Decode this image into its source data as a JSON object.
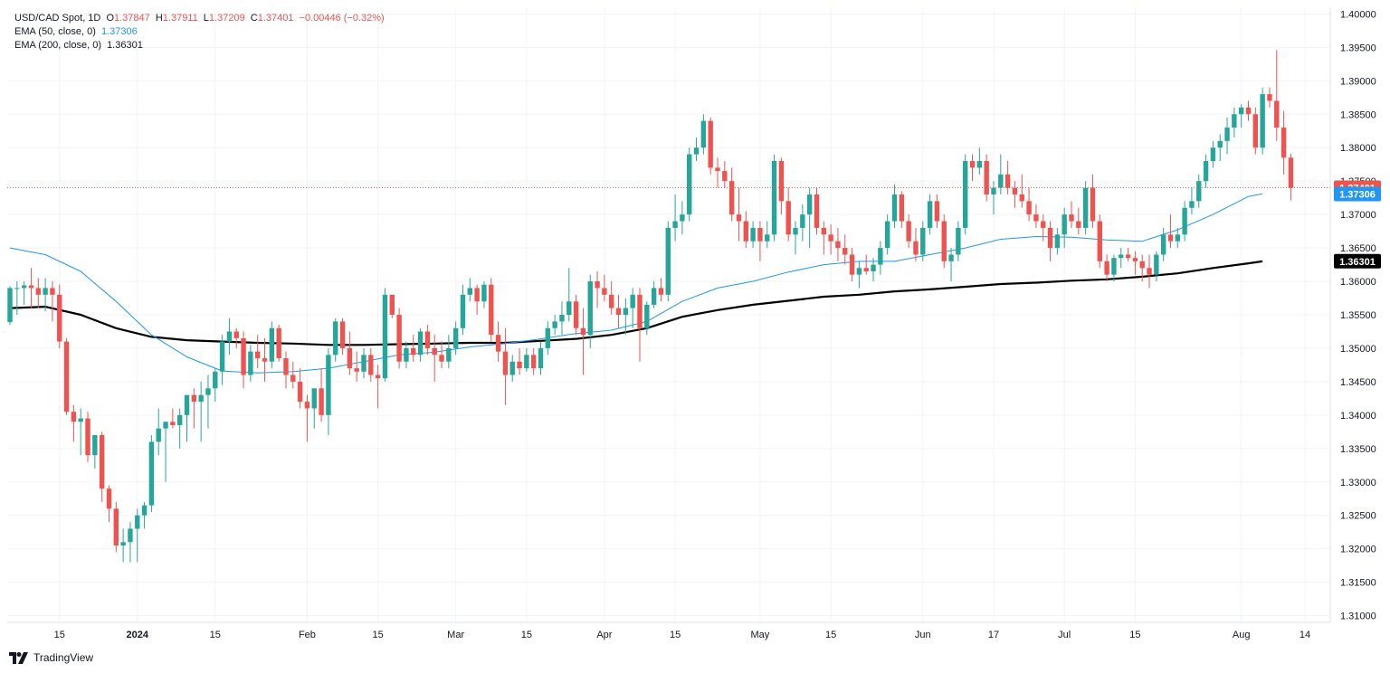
{
  "legend": {
    "symbol": "USD/CAD Spot, 1D",
    "o_label": "O",
    "o_val": "1.37847",
    "h_label": "H",
    "h_val": "1.37911",
    "l_label": "L",
    "l_val": "1.37209",
    "c_label": "C",
    "c_val": "1.37401",
    "change": "−0.00446 (−0.32%)",
    "ema50_label": "EMA (50, close, 0)",
    "ema50_val": "1.37306",
    "ema200_label": "EMA (200, close, 0)",
    "ema200_val": "1.36301"
  },
  "branding": {
    "logo_text": "TradingView"
  },
  "colors": {
    "up": "#26a69a",
    "down": "#ef5350",
    "ema50": "#2196f3",
    "ema200": "#000000",
    "grid": "#f0f3fa",
    "text": "#131722"
  },
  "chart_data": {
    "type": "candlestick",
    "title": "USD/CAD Spot, 1D",
    "ylim": [
      1.309,
      1.401
    ],
    "y_ticks": [
      "1.31000",
      "1.31500",
      "1.32000",
      "1.32500",
      "1.33000",
      "1.33500",
      "1.34000",
      "1.34500",
      "1.35000",
      "1.35500",
      "1.36000",
      "1.36500",
      "1.37000",
      "1.37500",
      "1.38000",
      "1.38500",
      "1.39000",
      "1.39500",
      "1.40000"
    ],
    "x_ticks": [
      {
        "label": "15",
        "index": 7,
        "bold": false
      },
      {
        "label": "2024",
        "index": 18,
        "bold": true
      },
      {
        "label": "15",
        "index": 29,
        "bold": false
      },
      {
        "label": "Feb",
        "index": 42,
        "bold": false
      },
      {
        "label": "15",
        "index": 52,
        "bold": false
      },
      {
        "label": "Mar",
        "index": 63,
        "bold": false
      },
      {
        "label": "15",
        "index": 73,
        "bold": false
      },
      {
        "label": "Apr",
        "index": 84,
        "bold": false
      },
      {
        "label": "15",
        "index": 94,
        "bold": false
      },
      {
        "label": "May",
        "index": 106,
        "bold": false
      },
      {
        "label": "15",
        "index": 116,
        "bold": false
      },
      {
        "label": "Jun",
        "index": 129,
        "bold": false
      },
      {
        "label": "17",
        "index": 139,
        "bold": false
      },
      {
        "label": "Jul",
        "index": 149,
        "bold": false
      },
      {
        "label": "15",
        "index": 159,
        "bold": false
      },
      {
        "label": "Aug",
        "index": 174,
        "bold": false
      },
      {
        "label": "14",
        "index": 183,
        "bold": false
      }
    ],
    "price_labels": {
      "last": "1.37401",
      "ema50": "1.37306",
      "ema200": "1.36301"
    },
    "last_price": 1.37401,
    "candles": [
      [
        1.3539,
        1.3593,
        1.3535,
        1.359
      ],
      [
        1.359,
        1.36,
        1.355,
        1.359
      ],
      [
        1.359,
        1.36,
        1.3565,
        1.3594
      ],
      [
        1.3594,
        1.362,
        1.356,
        1.359
      ],
      [
        1.359,
        1.3605,
        1.356,
        1.358
      ],
      [
        1.358,
        1.3605,
        1.3555,
        1.359
      ],
      [
        1.359,
        1.36,
        1.354,
        1.358
      ],
      [
        1.358,
        1.3595,
        1.35,
        1.351
      ],
      [
        1.351,
        1.3515,
        1.34,
        1.3405
      ],
      [
        1.3405,
        1.3415,
        1.336,
        1.339
      ],
      [
        1.339,
        1.341,
        1.334,
        1.3395
      ],
      [
        1.3395,
        1.3405,
        1.333,
        1.334
      ],
      [
        1.334,
        1.337,
        1.332,
        1.337
      ],
      [
        1.337,
        1.3375,
        1.327,
        1.329
      ],
      [
        1.329,
        1.3295,
        1.324,
        1.326
      ],
      [
        1.326,
        1.327,
        1.3195,
        1.3205
      ],
      [
        1.3205,
        1.323,
        1.318,
        1.321
      ],
      [
        1.321,
        1.324,
        1.318,
        1.323
      ],
      [
        1.323,
        1.326,
        1.318,
        1.325
      ],
      [
        1.325,
        1.327,
        1.323,
        1.3265
      ],
      [
        1.3265,
        1.337,
        1.3255,
        1.336
      ],
      [
        1.336,
        1.341,
        1.334,
        1.338
      ],
      [
        1.338,
        1.339,
        1.33,
        1.339
      ],
      [
        1.339,
        1.341,
        1.338,
        1.3385
      ],
      [
        1.3385,
        1.341,
        1.335,
        1.34
      ],
      [
        1.34,
        1.343,
        1.336,
        1.343
      ],
      [
        1.343,
        1.344,
        1.338,
        1.342
      ],
      [
        1.342,
        1.345,
        1.336,
        1.343
      ],
      [
        1.343,
        1.346,
        1.338,
        1.344
      ],
      [
        1.344,
        1.347,
        1.342,
        1.3465
      ],
      [
        1.3465,
        1.352,
        1.3445,
        1.351
      ],
      [
        1.351,
        1.3545,
        1.349,
        1.3525
      ],
      [
        1.3525,
        1.353,
        1.35,
        1.3515
      ],
      [
        1.3515,
        1.3525,
        1.344,
        1.346
      ],
      [
        1.346,
        1.3505,
        1.345,
        1.3495
      ],
      [
        1.3495,
        1.352,
        1.347,
        1.3485
      ],
      [
        1.3485,
        1.3515,
        1.345,
        1.348
      ],
      [
        1.348,
        1.354,
        1.347,
        1.353
      ],
      [
        1.353,
        1.3535,
        1.348,
        1.3485
      ],
      [
        1.3485,
        1.3495,
        1.344,
        1.346
      ],
      [
        1.346,
        1.348,
        1.344,
        1.345
      ],
      [
        1.345,
        1.347,
        1.341,
        1.342
      ],
      [
        1.342,
        1.343,
        1.336,
        1.341
      ],
      [
        1.341,
        1.344,
        1.338,
        1.344
      ],
      [
        1.344,
        1.347,
        1.339,
        1.34
      ],
      [
        1.34,
        1.35,
        1.337,
        1.349
      ],
      [
        1.349,
        1.3545,
        1.348,
        1.354
      ],
      [
        1.354,
        1.3545,
        1.349,
        1.35
      ],
      [
        1.35,
        1.3525,
        1.346,
        1.347
      ],
      [
        1.347,
        1.3495,
        1.345,
        1.3465
      ],
      [
        1.3465,
        1.35,
        1.3455,
        1.349
      ],
      [
        1.349,
        1.35,
        1.345,
        1.346
      ],
      [
        1.346,
        1.3475,
        1.341,
        1.3455
      ],
      [
        1.3455,
        1.359,
        1.345,
        1.358
      ],
      [
        1.358,
        1.358,
        1.3545,
        1.355
      ],
      [
        1.355,
        1.356,
        1.347,
        1.348
      ],
      [
        1.348,
        1.351,
        1.347,
        1.35
      ],
      [
        1.35,
        1.352,
        1.348,
        1.349
      ],
      [
        1.349,
        1.353,
        1.348,
        1.3525
      ],
      [
        1.3525,
        1.3535,
        1.349,
        1.35
      ],
      [
        1.35,
        1.352,
        1.345,
        1.349
      ],
      [
        1.349,
        1.351,
        1.347,
        1.348
      ],
      [
        1.348,
        1.352,
        1.347,
        1.35
      ],
      [
        1.35,
        1.354,
        1.349,
        1.353
      ],
      [
        1.353,
        1.3595,
        1.352,
        1.358
      ],
      [
        1.358,
        1.3605,
        1.357,
        1.359
      ],
      [
        1.359,
        1.3595,
        1.355,
        1.357
      ],
      [
        1.357,
        1.36,
        1.356,
        1.3595
      ],
      [
        1.3595,
        1.3605,
        1.351,
        1.352
      ],
      [
        1.352,
        1.354,
        1.348,
        1.3495
      ],
      [
        1.3495,
        1.353,
        1.3415,
        1.346
      ],
      [
        1.346,
        1.349,
        1.345,
        1.348
      ],
      [
        1.348,
        1.35,
        1.346,
        1.347
      ],
      [
        1.347,
        1.35,
        1.3465,
        1.349
      ],
      [
        1.349,
        1.35,
        1.346,
        1.347
      ],
      [
        1.347,
        1.351,
        1.346,
        1.35
      ],
      [
        1.35,
        1.354,
        1.349,
        1.353
      ],
      [
        1.353,
        1.355,
        1.352,
        1.354
      ],
      [
        1.354,
        1.357,
        1.352,
        1.355
      ],
      [
        1.355,
        1.362,
        1.354,
        1.357
      ],
      [
        1.357,
        1.358,
        1.352,
        1.353
      ],
      [
        1.353,
        1.356,
        1.346,
        1.352
      ],
      [
        1.352,
        1.361,
        1.35,
        1.36
      ],
      [
        1.36,
        1.3615,
        1.356,
        1.359
      ],
      [
        1.359,
        1.361,
        1.357,
        1.358
      ],
      [
        1.358,
        1.36,
        1.355,
        1.356
      ],
      [
        1.356,
        1.358,
        1.353,
        1.355
      ],
      [
        1.355,
        1.3575,
        1.352,
        1.356
      ],
      [
        1.356,
        1.359,
        1.353,
        1.358
      ],
      [
        1.358,
        1.359,
        1.348,
        1.353
      ],
      [
        1.353,
        1.357,
        1.352,
        1.3565
      ],
      [
        1.3565,
        1.36,
        1.356,
        1.359
      ],
      [
        1.359,
        1.3605,
        1.357,
        1.358
      ],
      [
        1.358,
        1.369,
        1.357,
        1.368
      ],
      [
        1.368,
        1.373,
        1.366,
        1.369
      ],
      [
        1.369,
        1.372,
        1.367,
        1.37
      ],
      [
        1.37,
        1.38,
        1.369,
        1.379
      ],
      [
        1.379,
        1.3815,
        1.378,
        1.38
      ],
      [
        1.38,
        1.385,
        1.379,
        1.384
      ],
      [
        1.384,
        1.3845,
        1.376,
        1.377
      ],
      [
        1.377,
        1.3785,
        1.374,
        1.3765
      ],
      [
        1.3765,
        1.378,
        1.374,
        1.375
      ],
      [
        1.375,
        1.377,
        1.369,
        1.37
      ],
      [
        1.37,
        1.374,
        1.366,
        1.369
      ],
      [
        1.369,
        1.3705,
        1.365,
        1.366
      ],
      [
        1.366,
        1.369,
        1.365,
        1.368
      ],
      [
        1.368,
        1.369,
        1.363,
        1.366
      ],
      [
        1.366,
        1.369,
        1.365,
        1.367
      ],
      [
        1.367,
        1.379,
        1.366,
        1.378
      ],
      [
        1.378,
        1.3785,
        1.37,
        1.372
      ],
      [
        1.372,
        1.374,
        1.366,
        1.367
      ],
      [
        1.367,
        1.369,
        1.364,
        1.368
      ],
      [
        1.368,
        1.3715,
        1.366,
        1.37
      ],
      [
        1.37,
        1.374,
        1.365,
        1.373
      ],
      [
        1.373,
        1.374,
        1.367,
        1.368
      ],
      [
        1.368,
        1.369,
        1.364,
        1.367
      ],
      [
        1.367,
        1.3685,
        1.364,
        1.366
      ],
      [
        1.366,
        1.368,
        1.363,
        1.365
      ],
      [
        1.365,
        1.367,
        1.3625,
        1.364
      ],
      [
        1.364,
        1.365,
        1.36,
        1.361
      ],
      [
        1.361,
        1.363,
        1.359,
        1.362
      ],
      [
        1.362,
        1.364,
        1.361,
        1.3615
      ],
      [
        1.3615,
        1.3635,
        1.36,
        1.3625
      ],
      [
        1.3625,
        1.366,
        1.361,
        1.365
      ],
      [
        1.365,
        1.37,
        1.364,
        1.369
      ],
      [
        1.369,
        1.3745,
        1.368,
        1.373
      ],
      [
        1.373,
        1.3735,
        1.368,
        1.369
      ],
      [
        1.369,
        1.37,
        1.365,
        1.366
      ],
      [
        1.366,
        1.368,
        1.363,
        1.364
      ],
      [
        1.364,
        1.369,
        1.363,
        1.368
      ],
      [
        1.368,
        1.373,
        1.367,
        1.372
      ],
      [
        1.372,
        1.373,
        1.368,
        1.369
      ],
      [
        1.369,
        1.37,
        1.362,
        1.363
      ],
      [
        1.363,
        1.365,
        1.36,
        1.364
      ],
      [
        1.364,
        1.369,
        1.363,
        1.368
      ],
      [
        1.368,
        1.379,
        1.367,
        1.378
      ],
      [
        1.378,
        1.379,
        1.375,
        1.377
      ],
      [
        1.377,
        1.38,
        1.376,
        1.378
      ],
      [
        1.378,
        1.379,
        1.372,
        1.373
      ],
      [
        1.373,
        1.375,
        1.37,
        1.374
      ],
      [
        1.374,
        1.379,
        1.373,
        1.376
      ],
      [
        1.376,
        1.378,
        1.373,
        1.374
      ],
      [
        1.374,
        1.375,
        1.371,
        1.373
      ],
      [
        1.373,
        1.376,
        1.371,
        1.372
      ],
      [
        1.372,
        1.374,
        1.369,
        1.37
      ],
      [
        1.37,
        1.3715,
        1.368,
        1.369
      ],
      [
        1.369,
        1.37,
        1.366,
        1.368
      ],
      [
        1.368,
        1.369,
        1.363,
        1.365
      ],
      [
        1.365,
        1.368,
        1.364,
        1.367
      ],
      [
        1.367,
        1.371,
        1.365,
        1.37
      ],
      [
        1.37,
        1.372,
        1.368,
        1.369
      ],
      [
        1.369,
        1.371,
        1.367,
        1.368
      ],
      [
        1.368,
        1.375,
        1.367,
        1.374
      ],
      [
        1.374,
        1.376,
        1.368,
        1.369
      ],
      [
        1.369,
        1.37,
        1.362,
        1.363
      ],
      [
        1.363,
        1.364,
        1.36,
        1.361
      ],
      [
        1.361,
        1.364,
        1.36,
        1.3635
      ],
      [
        1.3635,
        1.365,
        1.362,
        1.364
      ],
      [
        1.364,
        1.365,
        1.363,
        1.3635
      ],
      [
        1.3635,
        1.3645,
        1.361,
        1.363
      ],
      [
        1.363,
        1.364,
        1.36,
        1.362
      ],
      [
        1.362,
        1.364,
        1.359,
        1.361
      ],
      [
        1.361,
        1.3645,
        1.36,
        1.364
      ],
      [
        1.364,
        1.368,
        1.363,
        1.367
      ],
      [
        1.367,
        1.37,
        1.365,
        1.366
      ],
      [
        1.366,
        1.368,
        1.365,
        1.367
      ],
      [
        1.367,
        1.372,
        1.366,
        1.371
      ],
      [
        1.371,
        1.374,
        1.37,
        1.372
      ],
      [
        1.372,
        1.376,
        1.371,
        1.375
      ],
      [
        1.375,
        1.379,
        1.374,
        1.378
      ],
      [
        1.378,
        1.381,
        1.377,
        1.38
      ],
      [
        1.38,
        1.382,
        1.378,
        1.381
      ],
      [
        1.381,
        1.3845,
        1.379,
        1.383
      ],
      [
        1.383,
        1.386,
        1.3815,
        1.385
      ],
      [
        1.385,
        1.3865,
        1.383,
        1.386
      ],
      [
        1.386,
        1.387,
        1.384,
        1.385
      ],
      [
        1.385,
        1.386,
        1.379,
        1.38
      ],
      [
        1.38,
        1.389,
        1.379,
        1.388
      ],
      [
        1.388,
        1.389,
        1.386,
        1.387
      ],
      [
        1.387,
        1.3946,
        1.381,
        1.383
      ],
      [
        1.383,
        1.3855,
        1.376,
        1.3785
      ],
      [
        1.3785,
        1.3791,
        1.3721,
        1.374
      ]
    ],
    "ema50": [
      [
        0,
        1.365
      ],
      [
        5,
        1.364
      ],
      [
        10,
        1.3615
      ],
      [
        15,
        1.357
      ],
      [
        20,
        1.352
      ],
      [
        25,
        1.3487
      ],
      [
        30,
        1.3466
      ],
      [
        35,
        1.3463
      ],
      [
        40,
        1.3465
      ],
      [
        45,
        1.347
      ],
      [
        50,
        1.348
      ],
      [
        55,
        1.349
      ],
      [
        60,
        1.3494
      ],
      [
        65,
        1.3502
      ],
      [
        70,
        1.3507
      ],
      [
        75,
        1.3514
      ],
      [
        80,
        1.3522
      ],
      [
        85,
        1.3527
      ],
      [
        90,
        1.354
      ],
      [
        95,
        1.357
      ],
      [
        100,
        1.359
      ],
      [
        105,
        1.36
      ],
      [
        110,
        1.3614
      ],
      [
        115,
        1.3625
      ],
      [
        120,
        1.363
      ],
      [
        125,
        1.363
      ],
      [
        130,
        1.364
      ],
      [
        135,
        1.365
      ],
      [
        140,
        1.3663
      ],
      [
        145,
        1.3667
      ],
      [
        150,
        1.3666
      ],
      [
        155,
        1.3662
      ],
      [
        160,
        1.366
      ],
      [
        165,
        1.3677
      ],
      [
        170,
        1.37
      ],
      [
        175,
        1.3727
      ],
      [
        177,
        1.3731
      ]
    ],
    "ema200": [
      [
        0,
        1.356
      ],
      [
        5,
        1.3562
      ],
      [
        10,
        1.355
      ],
      [
        15,
        1.353
      ],
      [
        20,
        1.3517
      ],
      [
        25,
        1.3512
      ],
      [
        30,
        1.351
      ],
      [
        35,
        1.3508
      ],
      [
        40,
        1.3507
      ],
      [
        45,
        1.3505
      ],
      [
        50,
        1.3505
      ],
      [
        55,
        1.3506
      ],
      [
        60,
        1.3507
      ],
      [
        65,
        1.3508
      ],
      [
        70,
        1.3508
      ],
      [
        75,
        1.3511
      ],
      [
        80,
        1.3514
      ],
      [
        85,
        1.352
      ],
      [
        90,
        1.353
      ],
      [
        95,
        1.3547
      ],
      [
        100,
        1.3557
      ],
      [
        105,
        1.3565
      ],
      [
        110,
        1.3571
      ],
      [
        115,
        1.3577
      ],
      [
        120,
        1.358
      ],
      [
        125,
        1.3585
      ],
      [
        130,
        1.3588
      ],
      [
        135,
        1.3592
      ],
      [
        140,
        1.3596
      ],
      [
        145,
        1.3598
      ],
      [
        150,
        1.3601
      ],
      [
        155,
        1.3603
      ],
      [
        160,
        1.3607
      ],
      [
        165,
        1.3612
      ],
      [
        170,
        1.362
      ],
      [
        175,
        1.3627
      ],
      [
        177,
        1.363
      ]
    ]
  }
}
